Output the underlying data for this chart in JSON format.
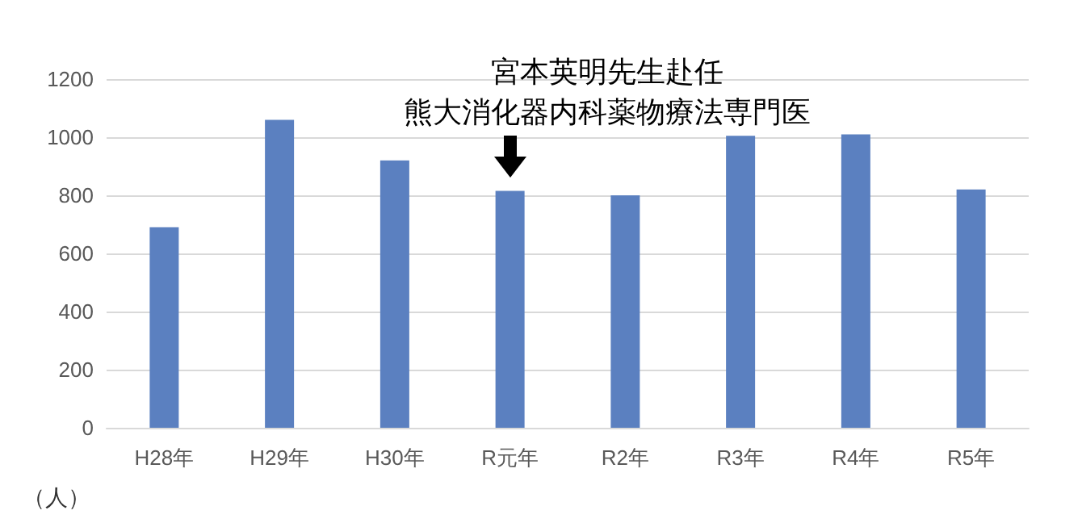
{
  "chart_data": {
    "type": "bar",
    "categories": [
      "H28年",
      "H29年",
      "H30年",
      "R元年",
      "R2年",
      "R3年",
      "R4年",
      "R5年"
    ],
    "values": [
      690,
      1060,
      920,
      815,
      800,
      1005,
      1010,
      820
    ],
    "color": "#5b80c0",
    "ylabel": "（人）",
    "ylim": [
      0,
      1200
    ],
    "yticks": [
      0,
      200,
      400,
      600,
      800,
      1000,
      1200
    ],
    "grid": "y",
    "annotations": [
      "宮本英明先生赴任",
      {
        "text": "熊大消化器内科薬物療法専門医",
        "x": "R元年",
        "y": 815
      }
    ]
  }
}
